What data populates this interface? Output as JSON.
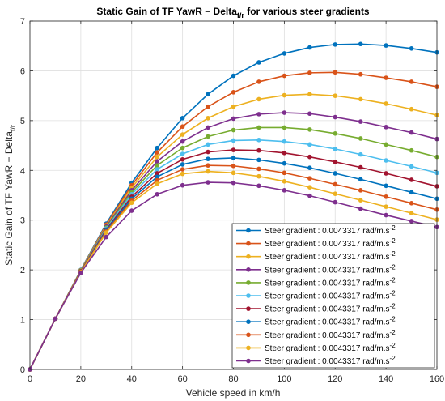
{
  "chart_data": {
    "type": "line",
    "title": "Static Gain of TF YawR − Delta",
    "title_subscript": "f/r",
    "title_suffix": " for various steer gradients",
    "xlabel": "Vehicle speed in km/h",
    "ylabel": "Static Gain of TF YawR − Delta",
    "ylabel_subscript": "f/r",
    "xlim": [
      0,
      160
    ],
    "ylim": [
      0,
      7
    ],
    "xticks": [
      "0",
      "20",
      "40",
      "60",
      "80",
      "100",
      "120",
      "140",
      "160"
    ],
    "yticks": [
      "0",
      "1",
      "2",
      "3",
      "4",
      "5",
      "6",
      "7"
    ],
    "grid": true,
    "legend_position": "bottom-right",
    "x": [
      0,
      10,
      20,
      30,
      40,
      50,
      60,
      70,
      80,
      90,
      100,
      110,
      120,
      130,
      140,
      150,
      160
    ],
    "series": [
      {
        "name": "Steer gradient : 0.0043317 rad/m.s",
        "name_sup": "-2",
        "color": "#0072bd",
        "values": [
          0,
          1.02,
          2.0,
          2.93,
          3.75,
          4.45,
          5.05,
          5.53,
          5.9,
          6.17,
          6.35,
          6.47,
          6.53,
          6.54,
          6.51,
          6.45,
          6.37
        ]
      },
      {
        "name": "Steer gradient : 0.0043317 rad/m.s",
        "name_sup": "-2",
        "color": "#d95319",
        "values": [
          0,
          1.02,
          1.99,
          2.91,
          3.7,
          4.36,
          4.88,
          5.28,
          5.57,
          5.78,
          5.9,
          5.96,
          5.97,
          5.93,
          5.86,
          5.78,
          5.68
        ]
      },
      {
        "name": "Steer gradient : 0.0043317 rad/m.s",
        "name_sup": "-2",
        "color": "#edb120",
        "values": [
          0,
          1.02,
          1.99,
          2.89,
          3.65,
          4.27,
          4.72,
          5.05,
          5.28,
          5.43,
          5.51,
          5.53,
          5.5,
          5.43,
          5.34,
          5.23,
          5.11
        ]
      },
      {
        "name": "Steer gradient : 0.0043317 rad/m.s",
        "name_sup": "-2",
        "color": "#7e2f8e",
        "values": [
          0,
          1.02,
          1.98,
          2.87,
          3.6,
          4.18,
          4.58,
          4.86,
          5.04,
          5.13,
          5.16,
          5.14,
          5.07,
          4.98,
          4.87,
          4.76,
          4.63
        ]
      },
      {
        "name": "Steer gradient : 0.0043317 rad/m.s",
        "name_sup": "-2",
        "color": "#77ac30",
        "values": [
          0,
          1.02,
          1.98,
          2.85,
          3.56,
          4.1,
          4.45,
          4.68,
          4.81,
          4.86,
          4.86,
          4.82,
          4.74,
          4.64,
          4.52,
          4.4,
          4.27
        ]
      },
      {
        "name": "Steer gradient : 0.0043317 rad/m.s",
        "name_sup": "-2",
        "color": "#4dbeee",
        "values": [
          0,
          1.02,
          1.97,
          2.83,
          3.52,
          4.02,
          4.33,
          4.52,
          4.6,
          4.61,
          4.58,
          4.52,
          4.43,
          4.32,
          4.2,
          4.08,
          3.95
        ]
      },
      {
        "name": "Steer gradient : 0.0043317 rad/m.s",
        "name_sup": "-2",
        "color": "#a2142f",
        "values": [
          0,
          1.02,
          1.97,
          2.81,
          3.47,
          3.94,
          4.22,
          4.37,
          4.41,
          4.4,
          4.35,
          4.27,
          4.17,
          4.06,
          3.94,
          3.81,
          3.68
        ]
      },
      {
        "name": "Steer gradient : 0.0043317 rad/m.s",
        "name_sup": "-2",
        "color": "#0072bd",
        "values": [
          0,
          1.02,
          1.96,
          2.79,
          3.43,
          3.87,
          4.12,
          4.23,
          4.25,
          4.21,
          4.14,
          4.05,
          3.94,
          3.82,
          3.69,
          3.56,
          3.43
        ]
      },
      {
        "name": "Steer gradient : 0.0043317 rad/m.s",
        "name_sup": "-2",
        "color": "#d95319",
        "values": [
          0,
          1.02,
          1.96,
          2.77,
          3.39,
          3.8,
          4.02,
          4.1,
          4.09,
          4.03,
          3.95,
          3.84,
          3.72,
          3.6,
          3.47,
          3.34,
          3.21
        ]
      },
      {
        "name": "Steer gradient : 0.0043317 rad/m.s",
        "name_sup": "-2",
        "color": "#edb120",
        "values": [
          0,
          1.02,
          1.95,
          2.75,
          3.35,
          3.73,
          3.93,
          3.98,
          3.95,
          3.88,
          3.78,
          3.66,
          3.53,
          3.4,
          3.27,
          3.14,
          3.01
        ]
      },
      {
        "name": "Steer gradient : 0.0043317 rad/m.s",
        "name_sup": "-2",
        "color": "#7e2f8e",
        "values": [
          0,
          1.02,
          1.94,
          2.66,
          3.19,
          3.52,
          3.7,
          3.76,
          3.75,
          3.69,
          3.6,
          3.49,
          3.36,
          3.23,
          3.1,
          2.98,
          2.86
        ]
      }
    ]
  }
}
